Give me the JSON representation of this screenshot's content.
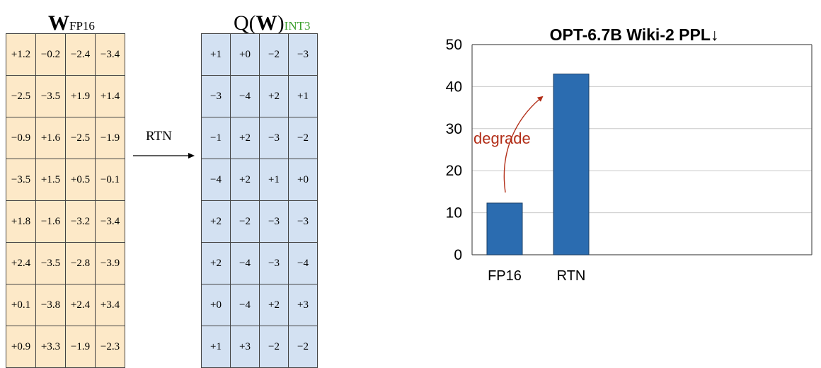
{
  "left_diagram": {
    "w_title": {
      "main": "W",
      "sub": "FP16"
    },
    "q_title": {
      "prefix": "Q(",
      "main": "W",
      "suffix": ")",
      "sub": "INT3"
    },
    "arrow_label": "RTN",
    "w_matrix": [
      [
        "+1.2",
        "−0.2",
        "−2.4",
        "−3.4"
      ],
      [
        "−2.5",
        "−3.5",
        "+1.9",
        "+1.4"
      ],
      [
        "−0.9",
        "+1.6",
        "−2.5",
        "−1.9"
      ],
      [
        "−3.5",
        "+1.5",
        "+0.5",
        "−0.1"
      ],
      [
        "+1.8",
        "−1.6",
        "−3.2",
        "−3.4"
      ],
      [
        "+2.4",
        "−3.5",
        "−2.8",
        "−3.9"
      ],
      [
        "+0.1",
        "−3.8",
        "+2.4",
        "+3.4"
      ],
      [
        "+0.9",
        "+3.3",
        "−1.9",
        "−2.3"
      ]
    ],
    "q_matrix": [
      [
        "+1",
        "+0",
        "−2",
        "−3"
      ],
      [
        "−3",
        "−4",
        "+2",
        "+1"
      ],
      [
        "−1",
        "+2",
        "−3",
        "−2"
      ],
      [
        "−4",
        "+2",
        "+1",
        "+0"
      ],
      [
        "+2",
        "−2",
        "−3",
        "−3"
      ],
      [
        "+2",
        "−4",
        "−3",
        "−4"
      ],
      [
        "+0",
        "−4",
        "+2",
        "+3"
      ],
      [
        "+1",
        "+3",
        "−2",
        "−2"
      ]
    ],
    "colors": {
      "w_fill": "#fde9c8",
      "q_fill": "#d3e1f2",
      "int3_text": "#3a9e2b"
    }
  },
  "chart_data": {
    "type": "bar",
    "title": "OPT-6.7B Wiki-2 PPL↓",
    "categories": [
      "FP16",
      "RTN"
    ],
    "values": [
      12.3,
      43.0
    ],
    "xlabel": "",
    "ylabel": "",
    "ylim": [
      0,
      50
    ],
    "yticks": [
      "0",
      "10",
      "20",
      "30",
      "40",
      "50"
    ],
    "grid": true,
    "bar_color": "#2b6cb0",
    "annotation": {
      "text": "degrade",
      "color": "#b22e18",
      "from": "FP16",
      "to": "RTN"
    }
  }
}
